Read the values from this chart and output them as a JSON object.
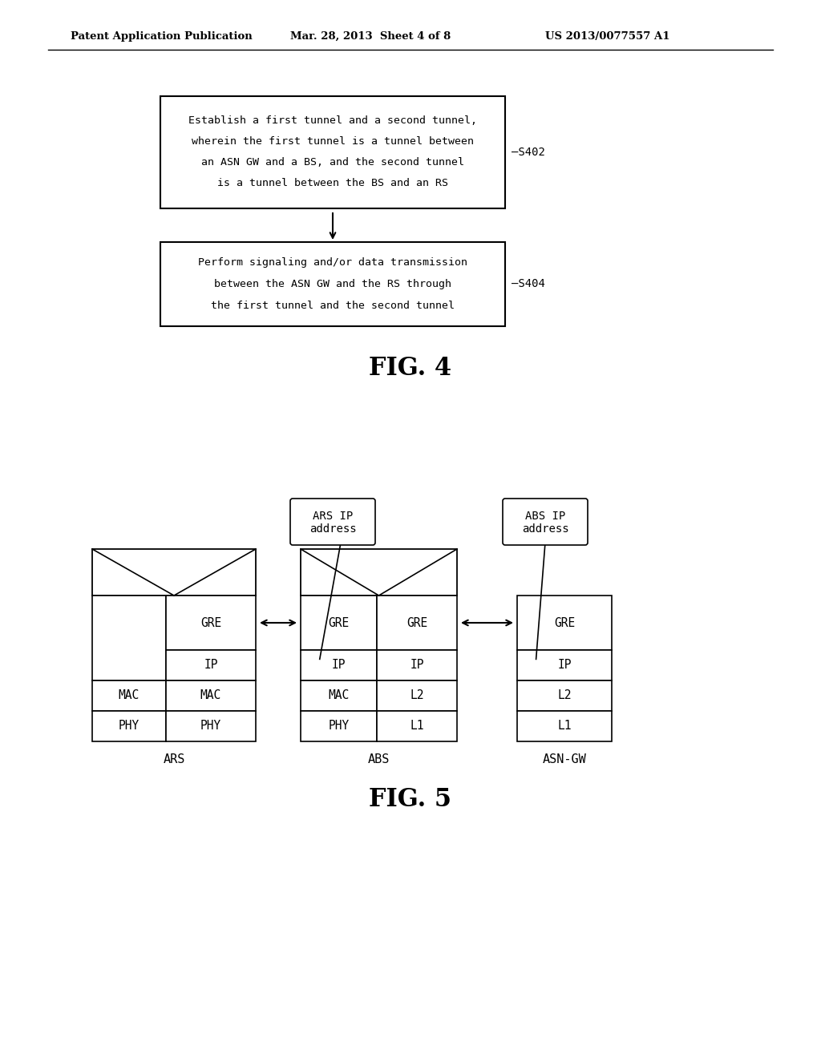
{
  "bg_color": "#ffffff",
  "header_text1": "Patent Application Publication",
  "header_text2": "Mar. 28, 2013  Sheet 4 of 8",
  "header_text3": "US 2013/0077557 A1",
  "fig4_title": "FIG. 4",
  "fig5_title": "FIG. 5",
  "box1_line1": "Establish a first tunnel and a second tunnel,",
  "box1_line2": "wherein the first tunnel is a tunnel between",
  "box1_line3": "an ASN GW and a BS, and the second tunnel",
  "box1_line4": "is a tunnel between the BS and an RS",
  "box1_label": "—S402",
  "box2_line1": "Perform signaling and/or data transmission",
  "box2_line2": "between the ASN GW and the RS through",
  "box2_line3": "the first tunnel and the second tunnel",
  "box2_label": "—S404",
  "ars_label": "ARS",
  "abs_label": "ABS",
  "asngw_label": "ASN-GW",
  "callout1_line1": "ARS IP",
  "callout1_line2": "address",
  "callout2_line1": "ABS IP",
  "callout2_line2": "address",
  "text_color": "#000000"
}
